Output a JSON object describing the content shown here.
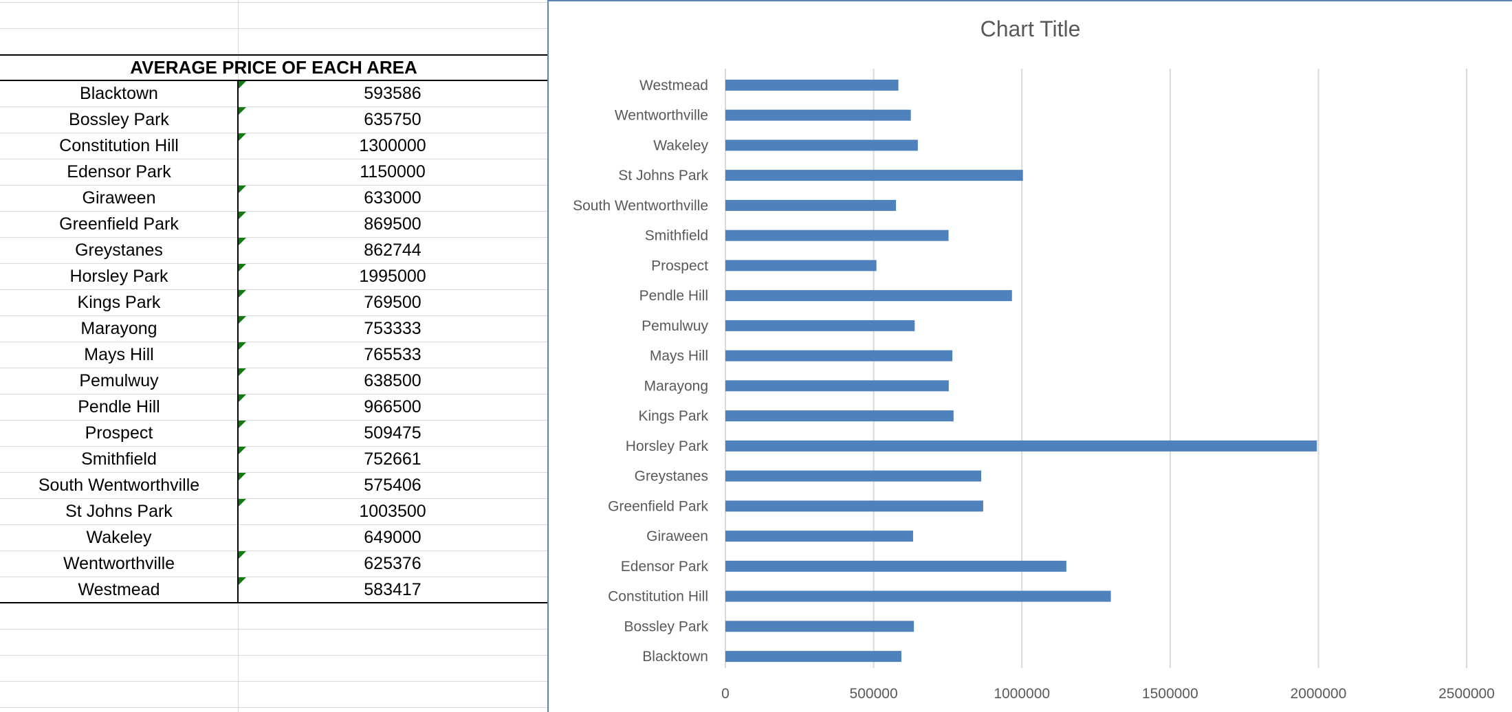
{
  "table": {
    "header": "AVERAGE PRICE OF EACH AREA",
    "rows": [
      {
        "area": "Blacktown",
        "price": "593586",
        "flag": true
      },
      {
        "area": "Bossley Park",
        "price": "635750",
        "flag": true
      },
      {
        "area": "Constitution Hill",
        "price": "1300000",
        "flag": true
      },
      {
        "area": "Edensor Park",
        "price": "1150000",
        "flag": false
      },
      {
        "area": "Giraween",
        "price": "633000",
        "flag": true
      },
      {
        "area": "Greenfield Park",
        "price": "869500",
        "flag": true
      },
      {
        "area": "Greystanes",
        "price": "862744",
        "flag": true
      },
      {
        "area": "Horsley Park",
        "price": "1995000",
        "flag": true
      },
      {
        "area": "Kings Park",
        "price": "769500",
        "flag": true
      },
      {
        "area": "Marayong",
        "price": "753333",
        "flag": true
      },
      {
        "area": "Mays Hill",
        "price": "765533",
        "flag": true
      },
      {
        "area": "Pemulwuy",
        "price": "638500",
        "flag": true
      },
      {
        "area": "Pendle Hill",
        "price": "966500",
        "flag": true
      },
      {
        "area": "Prospect",
        "price": "509475",
        "flag": true
      },
      {
        "area": "Smithfield",
        "price": "752661",
        "flag": true
      },
      {
        "area": "South Wentworthville",
        "price": "575406",
        "flag": true
      },
      {
        "area": "St Johns Park",
        "price": "1003500",
        "flag": true
      },
      {
        "area": "Wakeley",
        "price": "649000",
        "flag": false
      },
      {
        "area": "Wentworthville",
        "price": "625376",
        "flag": true
      },
      {
        "area": "Westmead",
        "price": "583417",
        "flag": true
      }
    ]
  },
  "colors": {
    "bar": "#4f81bd",
    "chart_border": "#5b84b5",
    "gridline": "#d9d9d9",
    "text_gray": "#595959",
    "error_flag": "#107c10"
  },
  "chart_data": {
    "type": "bar",
    "orientation": "horizontal",
    "title": "Chart Title",
    "categories": [
      "Blacktown",
      "Bossley Park",
      "Constitution Hill",
      "Edensor Park",
      "Giraween",
      "Greenfield Park",
      "Greystanes",
      "Horsley Park",
      "Kings Park",
      "Marayong",
      "Mays Hill",
      "Pemulwuy",
      "Pendle Hill",
      "Prospect",
      "Smithfield",
      "South Wentworthville",
      "St Johns Park",
      "Wakeley",
      "Wentworthville",
      "Westmead"
    ],
    "values": [
      593586,
      635750,
      1300000,
      1150000,
      633000,
      869500,
      862744,
      1995000,
      769500,
      753333,
      765533,
      638500,
      966500,
      509475,
      752661,
      575406,
      1003500,
      649000,
      625376,
      583417
    ],
    "xlim": [
      0,
      2500000
    ],
    "xticks": [
      "0",
      "500000",
      "1000000",
      "1500000",
      "2000000",
      "2500000"
    ],
    "grid": true,
    "legend": "none"
  }
}
